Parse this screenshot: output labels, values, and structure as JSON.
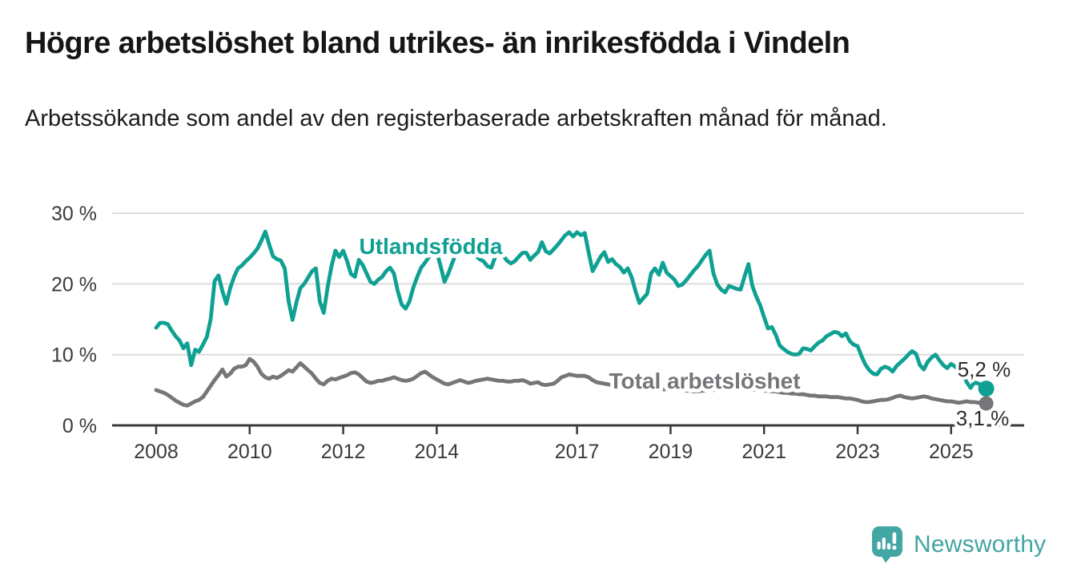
{
  "header": {
    "title": "Högre arbetslöshet bland utrikes- än inrikesfödda i Vindeln",
    "subtitle": "Arbetssökande som andel av den registerbaserade arbetskraften månad för månad."
  },
  "chart_data": {
    "type": "line",
    "x_start_year": 2008,
    "x_interval": "monthly",
    "x_end": "2025-10",
    "ylim": [
      0,
      30
    ],
    "grid": true,
    "legend_position": "inline-labels",
    "yticks": [
      {
        "value": 30,
        "label": "30 %"
      },
      {
        "value": 20,
        "label": "20 %"
      },
      {
        "value": 10,
        "label": "10 %"
      },
      {
        "value": 0,
        "label": "0 %"
      }
    ],
    "xticks": [
      {
        "value": 2008,
        "label": "2008"
      },
      {
        "value": 2010,
        "label": "2010"
      },
      {
        "value": 2012,
        "label": "2012"
      },
      {
        "value": 2014,
        "label": "2014"
      },
      {
        "value": 2017,
        "label": "2017"
      },
      {
        "value": 2019,
        "label": "2019"
      },
      {
        "value": 2021,
        "label": "2021"
      },
      {
        "value": 2023,
        "label": "2023"
      },
      {
        "value": 2025,
        "label": "2025"
      }
    ],
    "series": [
      {
        "name": "Utlandsfödda",
        "color": "#0fa094",
        "end_label": "5,2 %",
        "end_value": 5.2,
        "values": [
          13.8,
          14.5,
          14.5,
          14.3,
          13.4,
          12.6,
          12.0,
          10.9,
          11.6,
          8.5,
          10.7,
          10.4,
          11.4,
          12.5,
          15.0,
          20.4,
          21.2,
          19.0,
          17.2,
          19.4,
          21.0,
          22.2,
          22.6,
          23.2,
          23.7,
          24.3,
          25.0,
          26.1,
          27.4,
          25.6,
          23.9,
          23.5,
          23.3,
          22.2,
          17.5,
          14.9,
          17.4,
          19.4,
          20.0,
          20.9,
          21.8,
          22.2,
          17.5,
          15.9,
          19.5,
          22.5,
          24.7,
          23.8,
          24.7,
          23.2,
          21.4,
          21.0,
          23.4,
          22.7,
          21.5,
          20.3,
          20.0,
          20.6,
          21.0,
          21.8,
          22.3,
          21.5,
          19.0,
          17.1,
          16.5,
          17.5,
          19.5,
          21.0,
          22.3,
          23.0,
          23.8,
          24.2,
          24.5,
          22.5,
          20.3,
          21.5,
          23.0,
          24.3,
          25.3,
          25.8,
          25.2,
          24.6,
          24.0,
          23.5,
          23.2,
          22.5,
          22.3,
          23.8,
          24.5,
          24.1,
          23.3,
          22.9,
          23.2,
          23.8,
          24.4,
          24.4,
          23.4,
          24.0,
          24.5,
          25.9,
          24.6,
          24.3,
          24.9,
          25.5,
          26.2,
          26.9,
          27.3,
          26.7,
          27.3,
          26.9,
          27.2,
          24.4,
          21.8,
          22.8,
          23.8,
          24.5,
          23.1,
          23.5,
          22.8,
          22.4,
          21.6,
          22.2,
          21.0,
          19.0,
          17.3,
          18.0,
          18.6,
          21.5,
          22.2,
          21.3,
          23.0,
          21.6,
          21.1,
          20.6,
          19.7,
          19.9,
          20.5,
          21.2,
          21.9,
          22.5,
          23.3,
          24.1,
          24.7,
          21.5,
          19.9,
          19.2,
          18.8,
          19.7,
          19.5,
          19.3,
          19.2,
          21.1,
          22.8,
          19.7,
          18.2,
          17.0,
          15.3,
          13.7,
          13.9,
          12.8,
          11.3,
          10.8,
          10.4,
          10.1,
          10.0,
          10.1,
          10.9,
          10.8,
          10.6,
          11.2,
          11.7,
          12.0,
          12.6,
          12.9,
          13.2,
          13.1,
          12.6,
          13.0,
          11.9,
          11.4,
          11.2,
          9.8,
          8.6,
          7.8,
          7.3,
          7.2,
          8.0,
          8.3,
          8.1,
          7.6,
          8.4,
          8.9,
          9.4,
          10.0,
          10.5,
          10.1,
          8.5,
          7.9,
          9.0,
          9.6,
          10.0,
          9.2,
          8.5,
          8.1,
          8.7,
          8.3,
          7.8,
          7.2,
          6.1,
          5.3,
          6.1,
          5.9,
          5.6,
          5.2
        ]
      },
      {
        "name": "Total arbetslöshet",
        "color": "#76767a",
        "end_label": "3,1 %",
        "end_value": 3.1,
        "values": [
          5.0,
          4.8,
          4.6,
          4.3,
          3.9,
          3.5,
          3.2,
          2.9,
          2.8,
          3.1,
          3.4,
          3.6,
          4.0,
          4.8,
          5.6,
          6.4,
          7.1,
          7.9,
          6.9,
          7.3,
          8.0,
          8.3,
          8.3,
          8.5,
          9.4,
          9.0,
          8.3,
          7.3,
          6.8,
          6.6,
          6.9,
          6.7,
          7.0,
          7.4,
          7.8,
          7.6,
          8.2,
          8.8,
          8.3,
          7.8,
          7.3,
          6.6,
          6.0,
          5.8,
          6.3,
          6.6,
          6.5,
          6.7,
          6.9,
          7.1,
          7.4,
          7.5,
          7.2,
          6.7,
          6.2,
          6.0,
          6.1,
          6.3,
          6.3,
          6.5,
          6.6,
          6.8,
          6.6,
          6.4,
          6.3,
          6.4,
          6.6,
          7.0,
          7.4,
          7.6,
          7.2,
          6.8,
          6.5,
          6.2,
          5.9,
          5.8,
          6.0,
          6.2,
          6.4,
          6.2,
          6.0,
          6.1,
          6.3,
          6.4,
          6.5,
          6.6,
          6.5,
          6.4,
          6.3,
          6.3,
          6.2,
          6.2,
          6.3,
          6.3,
          6.4,
          6.2,
          5.9,
          6.0,
          6.1,
          5.8,
          5.7,
          5.8,
          5.9,
          6.3,
          6.8,
          7.0,
          7.2,
          7.1,
          7.0,
          7.0,
          7.0,
          6.8,
          6.4,
          6.1,
          6.0,
          5.9,
          5.8,
          5.7,
          5.6,
          5.6,
          5.6,
          5.5,
          5.5,
          5.4,
          5.4,
          5.3,
          5.3,
          5.2,
          5.2,
          5.2,
          5.1,
          5.1,
          5.1,
          5.0,
          5.0,
          4.9,
          4.9,
          4.9,
          4.8,
          4.8,
          4.9,
          4.9,
          5.0,
          5.0,
          5.1,
          5.2,
          5.3,
          5.4,
          5.4,
          5.3,
          5.2,
          5.2,
          5.1,
          5.1,
          5.0,
          5.0,
          4.9,
          4.9,
          4.8,
          4.8,
          4.7,
          4.6,
          4.6,
          4.5,
          4.5,
          4.4,
          4.4,
          4.3,
          4.2,
          4.2,
          4.1,
          4.1,
          4.1,
          4.0,
          4.0,
          4.0,
          3.9,
          3.8,
          3.8,
          3.7,
          3.6,
          3.4,
          3.3,
          3.3,
          3.4,
          3.5,
          3.6,
          3.6,
          3.7,
          3.9,
          4.1,
          4.2,
          4.0,
          3.9,
          3.8,
          3.9,
          4.0,
          4.1,
          4.0,
          3.8,
          3.7,
          3.6,
          3.5,
          3.4,
          3.4,
          3.3,
          3.2,
          3.3,
          3.4,
          3.3,
          3.3,
          3.2,
          3.2,
          3.1
        ]
      }
    ]
  },
  "footer": {
    "brand": "Newsworthy"
  },
  "colors": {
    "accent_teal": "#0fa094",
    "series_gray": "#76767a",
    "axis": "#3a3a3a",
    "grid": "#dcdcdc",
    "title_text": "#161616",
    "logo_teal": "#42a6a2"
  }
}
